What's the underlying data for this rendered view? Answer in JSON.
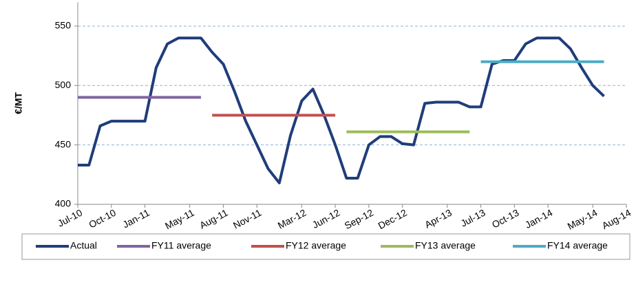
{
  "chart_data": {
    "type": "line",
    "y_label": "€/MT",
    "categories": [
      "Jul-10",
      null,
      null,
      "Oct-10",
      null,
      null,
      "Jan-11",
      null,
      null,
      null,
      "May-11",
      null,
      null,
      "Aug-11",
      null,
      null,
      "Nov-11",
      null,
      null,
      null,
      "Mar-12",
      null,
      null,
      "Jun-12",
      null,
      null,
      "Sep-12",
      null,
      null,
      "Dec-12",
      null,
      null,
      null,
      "Apr-13",
      null,
      null,
      "Jul-13",
      null,
      null,
      "Oct-13",
      null,
      null,
      "Jan-14",
      null,
      null,
      null,
      "May-14",
      null,
      null,
      "Aug-14"
    ],
    "series": [
      {
        "name": "Actual",
        "color": "#1f3d7a",
        "values": [
          433,
          433,
          466,
          470,
          470,
          470,
          470,
          515,
          535,
          540,
          540,
          540,
          528,
          518,
          495,
          470,
          450,
          430,
          418,
          458,
          487,
          497,
          475,
          450,
          422,
          422,
          450,
          457,
          457,
          451,
          450,
          485,
          486,
          486,
          486,
          482,
          482,
          518,
          521,
          521,
          535,
          540,
          540,
          540,
          531,
          515,
          500,
          491,
          null,
          null
        ]
      },
      {
        "name": "FY11 average",
        "color": "#8064a2",
        "values": [
          490,
          490,
          490,
          490,
          490,
          490,
          490,
          490,
          490,
          490,
          490,
          490,
          null,
          null,
          null,
          null,
          null,
          null,
          null,
          null,
          null,
          null,
          null,
          null,
          null,
          null,
          null,
          null,
          null,
          null,
          null,
          null,
          null,
          null,
          null,
          null,
          null,
          null,
          null,
          null,
          null,
          null,
          null,
          null,
          null,
          null,
          null,
          null,
          null,
          null
        ]
      },
      {
        "name": "FY12 average",
        "color": "#c0504d",
        "values": [
          null,
          null,
          null,
          null,
          null,
          null,
          null,
          null,
          null,
          null,
          null,
          null,
          475,
          475,
          475,
          475,
          475,
          475,
          475,
          475,
          475,
          475,
          475,
          475,
          null,
          null,
          null,
          null,
          null,
          null,
          null,
          null,
          null,
          null,
          null,
          null,
          null,
          null,
          null,
          null,
          null,
          null,
          null,
          null,
          null,
          null,
          null,
          null,
          null,
          null
        ]
      },
      {
        "name": "FY13 average",
        "color": "#9bbb59",
        "values": [
          null,
          null,
          null,
          null,
          null,
          null,
          null,
          null,
          null,
          null,
          null,
          null,
          null,
          null,
          null,
          null,
          null,
          null,
          null,
          null,
          null,
          null,
          null,
          null,
          461,
          461,
          461,
          461,
          461,
          461,
          461,
          461,
          461,
          461,
          461,
          461,
          null,
          null,
          null,
          null,
          null,
          null,
          null,
          null,
          null,
          null,
          null,
          null,
          null,
          null
        ]
      },
      {
        "name": "FY14 average",
        "color": "#4bacc6",
        "values": [
          null,
          null,
          null,
          null,
          null,
          null,
          null,
          null,
          null,
          null,
          null,
          null,
          null,
          null,
          null,
          null,
          null,
          null,
          null,
          null,
          null,
          null,
          null,
          null,
          null,
          null,
          null,
          null,
          null,
          null,
          null,
          null,
          null,
          null,
          null,
          null,
          520,
          520,
          520,
          520,
          520,
          520,
          520,
          520,
          520,
          520,
          520,
          520,
          null,
          null
        ]
      }
    ],
    "ylim": [
      400,
      570
    ],
    "yticks": [
      400,
      450,
      500,
      550
    ],
    "grid": true,
    "legend": "bottom"
  }
}
